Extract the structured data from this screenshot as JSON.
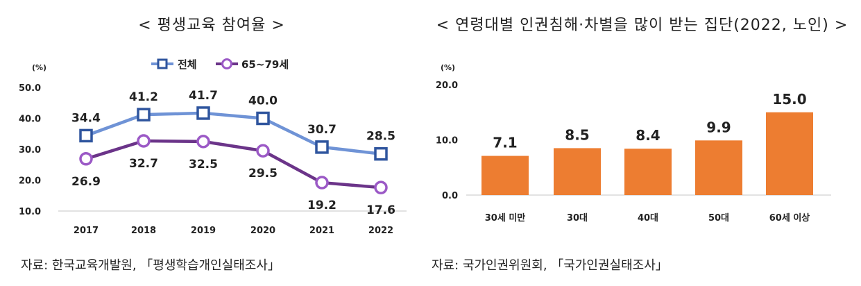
{
  "left_chart": {
    "title": "< 평생교육 참여율 >",
    "source": "자료: 한국교육개발원, 「평생학습개인실태조사」",
    "chart_data": {
      "type": "line",
      "unit": "(%)",
      "x": [
        "2017",
        "2018",
        "2019",
        "2020",
        "2021",
        "2022"
      ],
      "ylim": [
        10,
        50
      ],
      "yticks": [
        "50.0",
        "40.0",
        "30.0",
        "20.0",
        "10.0"
      ],
      "ytick_values": [
        50,
        40,
        30,
        20,
        10
      ],
      "legend_position": "top-center",
      "series": [
        {
          "name": "전체",
          "color": "#6f93d6",
          "marker_color": "#2f559e",
          "values": [
            34.4,
            41.2,
            41.7,
            40.0,
            30.7,
            28.5
          ],
          "labels": [
            "34.4",
            "41.2",
            "41.7",
            "40.0",
            "30.7",
            "28.5"
          ],
          "label_position": "above"
        },
        {
          "name": "65~79세",
          "color": "#6b3489",
          "marker_color": "#9b59c6",
          "values": [
            26.9,
            32.7,
            32.5,
            29.5,
            19.2,
            17.6
          ],
          "labels": [
            "26.9",
            "32.7",
            "32.5",
            "29.5",
            "19.2",
            "17.6"
          ],
          "label_position": "below"
        }
      ]
    }
  },
  "right_chart": {
    "title": "< 연령대별 인권침해·차별을 많이 받는 집단(2022, 노인) >",
    "source": "자료: 국가인권위원회, 「국가인권실태조사」",
    "chart_data": {
      "type": "bar",
      "unit": "(%)",
      "categories": [
        "30세 미만",
        "30대",
        "40대",
        "50대",
        "60세 이상"
      ],
      "values": [
        7.1,
        8.5,
        8.4,
        9.9,
        15.0
      ],
      "labels": [
        "7.1",
        "8.5",
        "8.4",
        "9.9",
        "15.0"
      ],
      "ylim": [
        0,
        20
      ],
      "yticks": [
        "20.0",
        "10.0",
        "0.0"
      ],
      "ytick_values": [
        20,
        10,
        0
      ],
      "bar_color": "#ed7d31"
    }
  }
}
